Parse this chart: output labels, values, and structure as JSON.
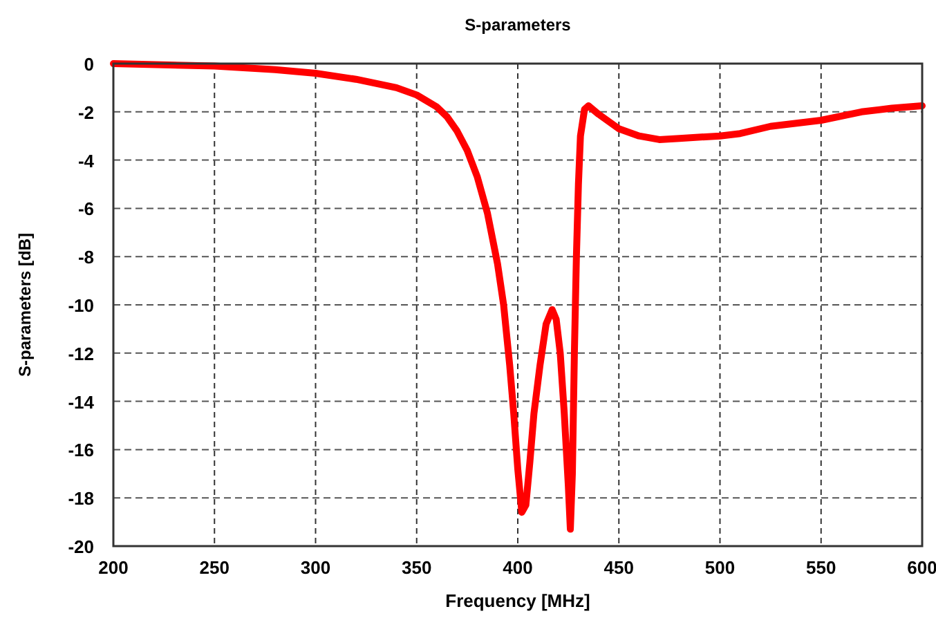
{
  "chart_data": {
    "type": "line",
    "title": "S-parameters",
    "xlabel": "Frequency [MHz]",
    "ylabel": "S-parameters [dB]",
    "x": [
      200,
      250,
      280,
      300,
      320,
      340,
      350,
      360,
      365,
      370,
      375,
      380,
      385,
      390,
      393,
      396,
      398,
      400,
      402,
      404,
      406,
      408,
      411,
      414,
      417,
      419,
      421,
      423,
      425,
      426,
      427,
      428,
      429,
      430,
      431,
      433,
      435,
      440,
      450,
      460,
      470,
      480,
      500,
      510,
      525,
      550,
      570,
      585,
      600
    ],
    "series": [
      {
        "color": "#ff0000",
        "values": [
          0,
          -0.1,
          -0.25,
          -0.4,
          -0.65,
          -1.0,
          -1.3,
          -1.8,
          -2.2,
          -2.8,
          -3.6,
          -4.7,
          -6.2,
          -8.3,
          -10,
          -12.5,
          -14.5,
          -16.8,
          -18.6,
          -18.3,
          -16.5,
          -14.5,
          -12.5,
          -10.8,
          -10.2,
          -10.6,
          -12,
          -14.5,
          -17.5,
          -19.3,
          -17,
          -12,
          -8,
          -5,
          -3,
          -1.9,
          -1.75,
          -2.1,
          -2.7,
          -3.0,
          -3.15,
          -3.1,
          -3.0,
          -2.9,
          -2.6,
          -2.35,
          -2.0,
          -1.85,
          -1.75
        ]
      }
    ],
    "xlim": [
      200,
      600
    ],
    "xticks": [
      200,
      250,
      300,
      350,
      400,
      450,
      500,
      550,
      600
    ],
    "ylim": [
      -20,
      0
    ],
    "yticks": [
      -20,
      -18,
      -16,
      -14,
      -12,
      -10,
      -8,
      -6,
      -4,
      -2,
      0
    ],
    "grid": true,
    "line_style": "solid",
    "marker": "none"
  }
}
